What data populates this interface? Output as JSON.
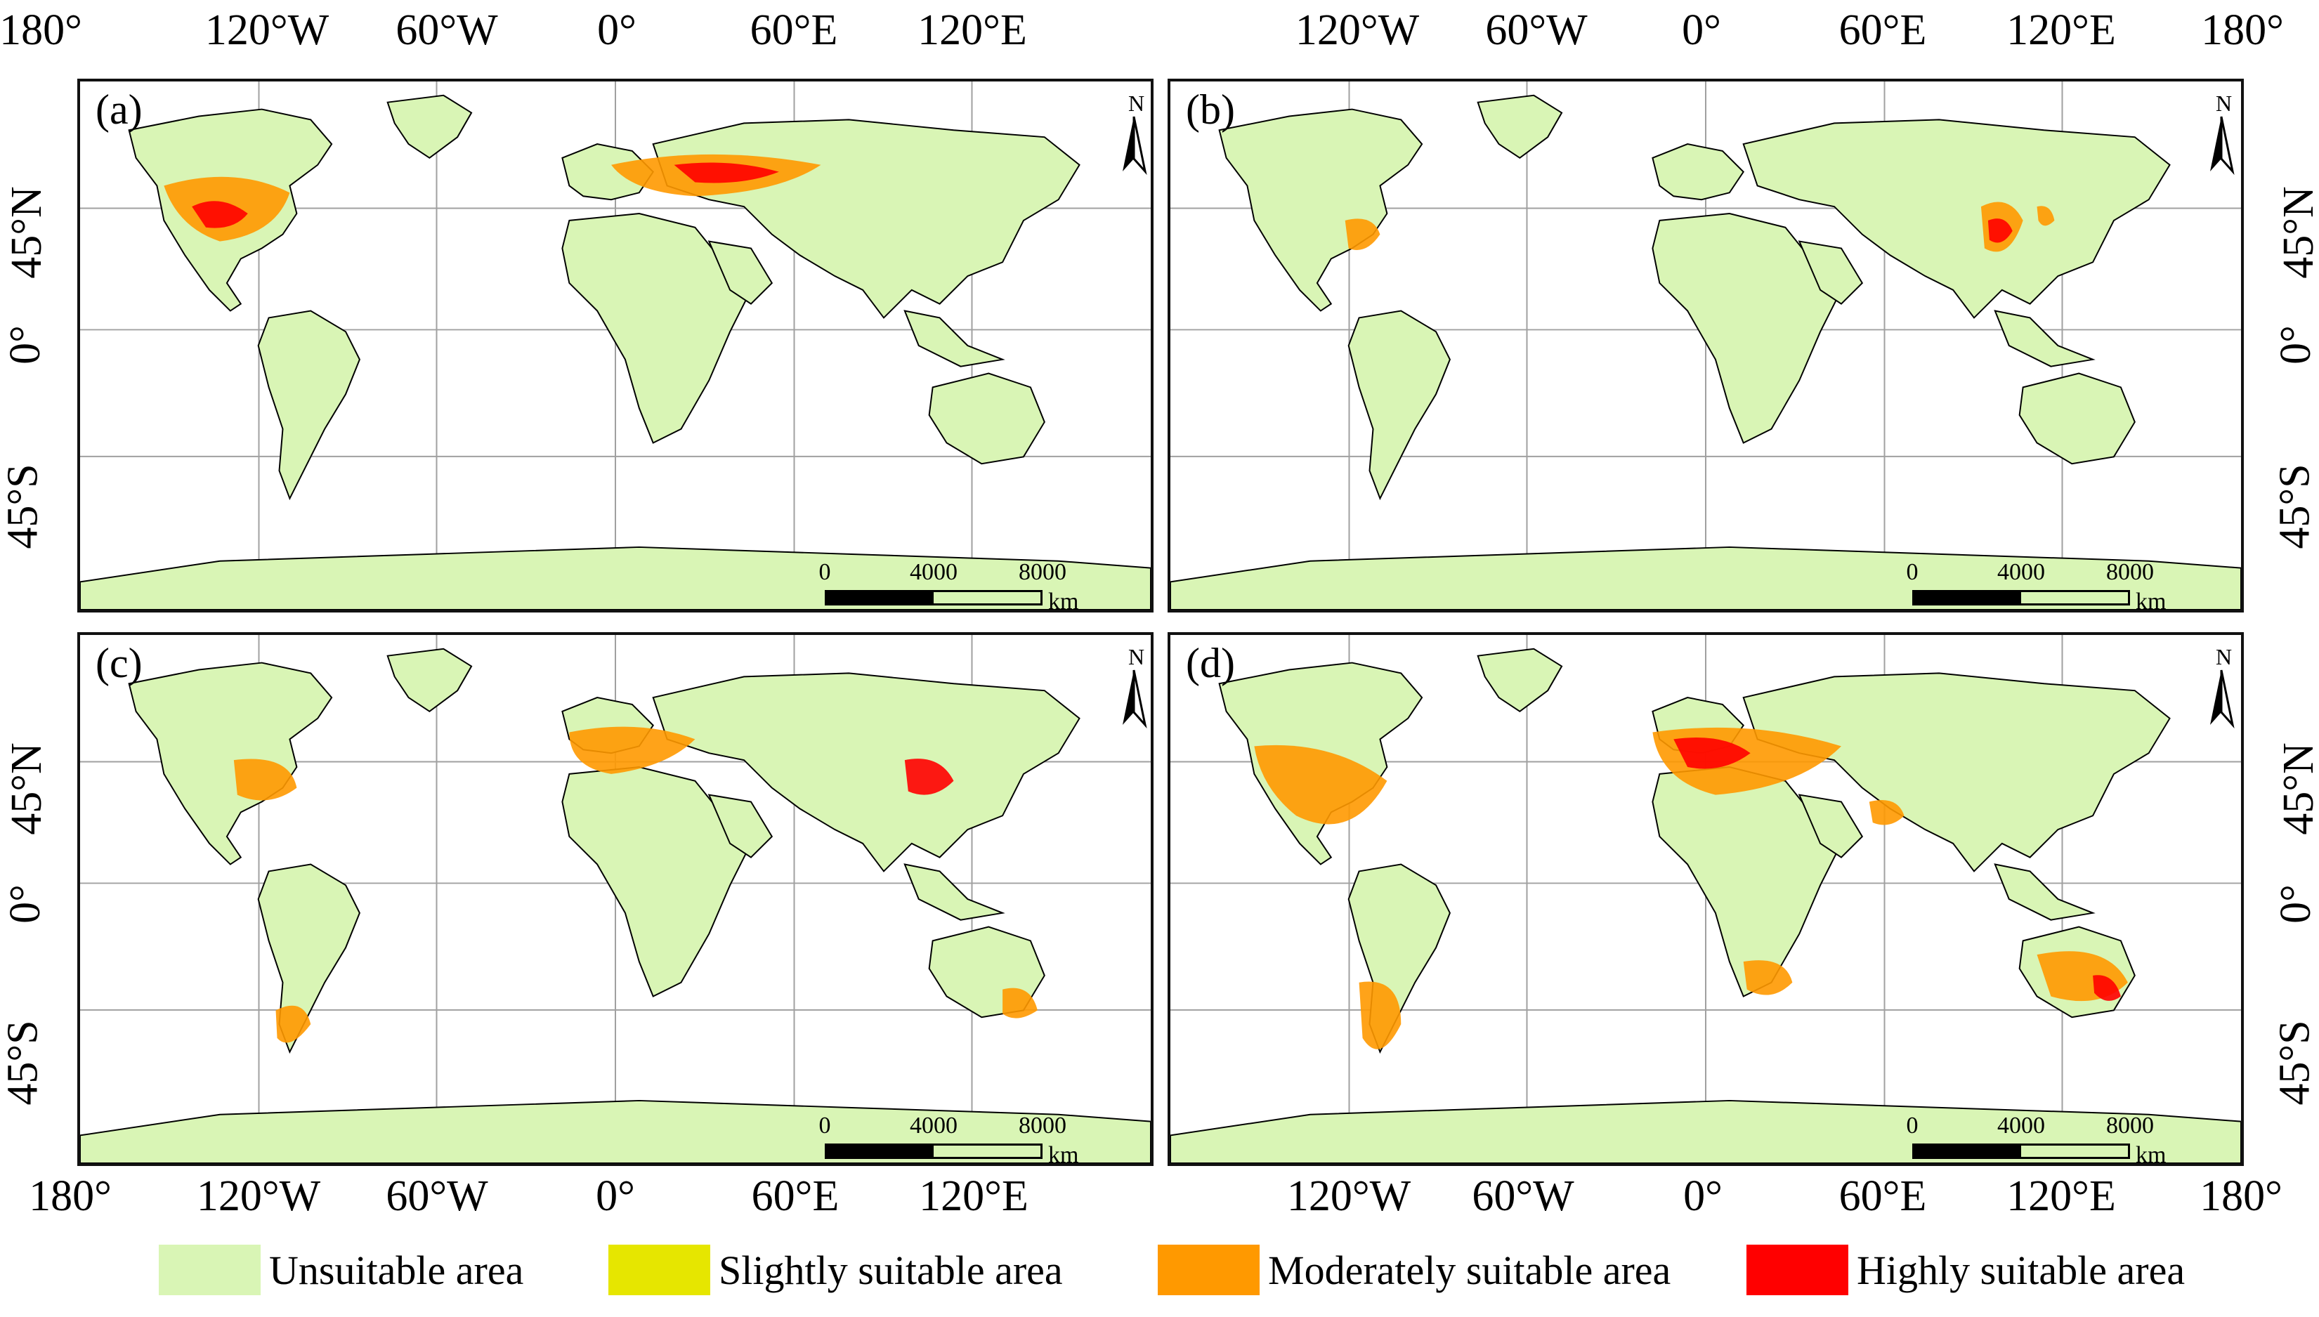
{
  "panels": [
    {
      "id": "a",
      "label": "(a)",
      "box": "top-left"
    },
    {
      "id": "b",
      "label": "(b)",
      "box": "top-right"
    },
    {
      "id": "c",
      "label": "(c)",
      "box": "bottom-left"
    },
    {
      "id": "d",
      "label": "(d)",
      "box": "bottom-right"
    }
  ],
  "axes": {
    "top_left_ticks": [
      "180°",
      "120°W",
      "60°W",
      "0°",
      "60°E",
      "120°E"
    ],
    "top_right_ticks": [
      "120°W",
      "60°W",
      "0°",
      "60°E",
      "120°E",
      "180°"
    ],
    "bottom_left_ticks": [
      "180°",
      "120°W",
      "60°W",
      "0°",
      "60°E",
      "120°E"
    ],
    "bottom_right_ticks": [
      "120°W",
      "60°W",
      "0°",
      "60°E",
      "120°E",
      "180°"
    ],
    "lat_ticks": [
      "45°N",
      "0°",
      "45°S"
    ]
  },
  "scalebar": {
    "labels": [
      "0",
      "4000",
      "8000"
    ],
    "unit": "km"
  },
  "north_label": "N",
  "legend": [
    {
      "label": "Unsuitable area",
      "color": "#d9f5b5"
    },
    {
      "label": "Slightly suitable area",
      "color": "#e6e600"
    },
    {
      "label": "Moderately suitable area",
      "color": "#ff9900"
    },
    {
      "label": "Highly suitable area",
      "color": "#ff0000"
    }
  ],
  "colors": {
    "land": "#d9f5b5",
    "border": "#000000",
    "grid": "#a0a0a0"
  }
}
